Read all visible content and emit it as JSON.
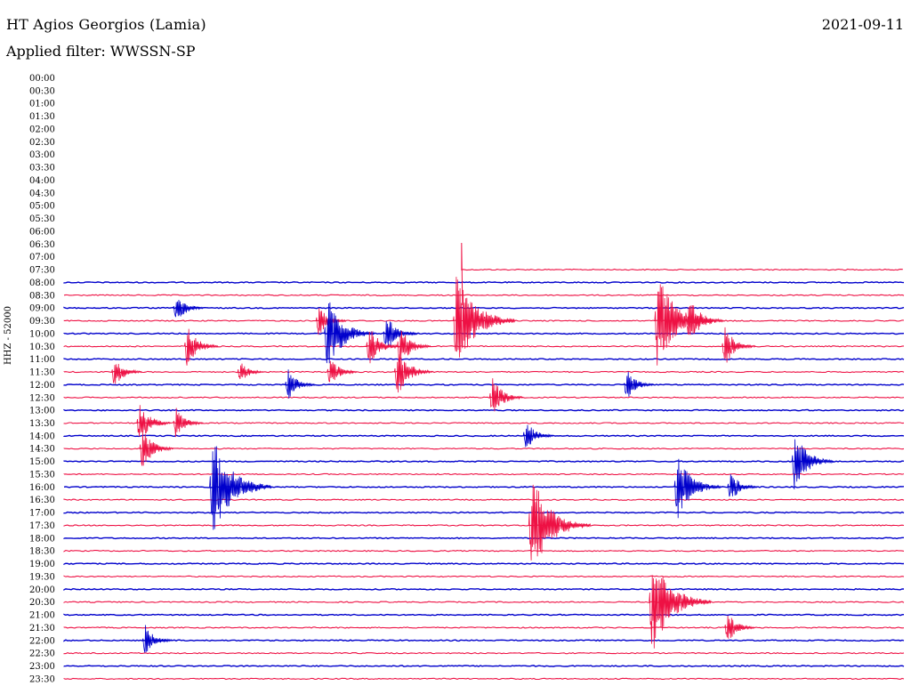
{
  "header": {
    "station": "HT Agios Georgios (Lamia)",
    "date": "2021-09-11",
    "filter": "Applied filter: WWSSN-SP",
    "channel": "HHZ - 52000"
  },
  "colors": {
    "odd_trace": "#0000cc",
    "even_trace": "#ee1144"
  },
  "chart_data": {
    "type": "line",
    "title": "HT Agios Georgios (Lamia)",
    "subtitle": "Applied filter: WWSSN-SP",
    "ylabel": "HHZ - 52000",
    "grid": false,
    "trace_colors_alternate": [
      "#0000cc",
      "#ee1144"
    ],
    "row_labels": [
      "00:00",
      "00:30",
      "01:00",
      "01:30",
      "02:00",
      "02:30",
      "03:00",
      "03:30",
      "04:00",
      "04:30",
      "05:00",
      "05:30",
      "06:00",
      "06:30",
      "07:00",
      "07:30",
      "08:00",
      "08:30",
      "09:00",
      "09:30",
      "10:00",
      "10:30",
      "11:00",
      "11:30",
      "12:00",
      "12:30",
      "13:00",
      "13:30",
      "14:00",
      "14:30",
      "15:00",
      "15:30",
      "16:00",
      "16:30",
      "17:00",
      "17:30",
      "18:00",
      "18:30",
      "19:00",
      "19:30",
      "20:00",
      "20:30",
      "21:00",
      "21:30",
      "22:00",
      "22:30",
      "23:00",
      "23:30"
    ],
    "data_start": {
      "row": "07:30",
      "minute": 14.2
    },
    "events": [
      {
        "row": "09:00",
        "minute": 3.9,
        "amplitude": 0.2
      },
      {
        "row": "09:30",
        "minute": 9.0,
        "amplitude": 0.2
      },
      {
        "row": "09:30",
        "minute": 13.9,
        "amplitude": 1.0
      },
      {
        "row": "09:30",
        "minute": 21.1,
        "amplitude": 0.9
      },
      {
        "row": "09:30",
        "minute": 22.2,
        "amplitude": 0.4
      },
      {
        "row": "10:00",
        "minute": 9.3,
        "amplitude": 0.7
      },
      {
        "row": "10:00",
        "minute": 11.4,
        "amplitude": 0.3
      },
      {
        "row": "10:30",
        "minute": 4.3,
        "amplitude": 0.3
      },
      {
        "row": "10:30",
        "minute": 10.8,
        "amplitude": 0.3
      },
      {
        "row": "10:30",
        "minute": 11.9,
        "amplitude": 0.3
      },
      {
        "row": "10:30",
        "minute": 23.5,
        "amplitude": 0.3
      },
      {
        "row": "11:30",
        "minute": 1.7,
        "amplitude": 0.2
      },
      {
        "row": "11:30",
        "minute": 6.2,
        "amplitude": 0.1
      },
      {
        "row": "11:30",
        "minute": 9.4,
        "amplitude": 0.2
      },
      {
        "row": "11:30",
        "minute": 11.8,
        "amplitude": 0.4
      },
      {
        "row": "12:00",
        "minute": 7.9,
        "amplitude": 0.2
      },
      {
        "row": "12:00",
        "minute": 20.0,
        "amplitude": 0.2
      },
      {
        "row": "12:30",
        "minute": 15.2,
        "amplitude": 0.3
      },
      {
        "row": "13:30",
        "minute": 2.6,
        "amplitude": 0.3
      },
      {
        "row": "13:30",
        "minute": 3.9,
        "amplitude": 0.2
      },
      {
        "row": "14:00",
        "minute": 16.4,
        "amplitude": 0.2
      },
      {
        "row": "14:30",
        "minute": 2.7,
        "amplitude": 0.3
      },
      {
        "row": "15:00",
        "minute": 26.0,
        "amplitude": 0.5
      },
      {
        "row": "16:00",
        "minute": 5.2,
        "amplitude": 1.0
      },
      {
        "row": "16:00",
        "minute": 21.8,
        "amplitude": 0.6
      },
      {
        "row": "16:00",
        "minute": 23.7,
        "amplitude": 0.2
      },
      {
        "row": "17:30",
        "minute": 16.6,
        "amplitude": 1.0
      },
      {
        "row": "20:30",
        "minute": 20.9,
        "amplitude": 1.0
      },
      {
        "row": "21:30",
        "minute": 23.6,
        "amplitude": 0.2
      },
      {
        "row": "22:00",
        "minute": 2.8,
        "amplitude": 0.2
      }
    ]
  }
}
